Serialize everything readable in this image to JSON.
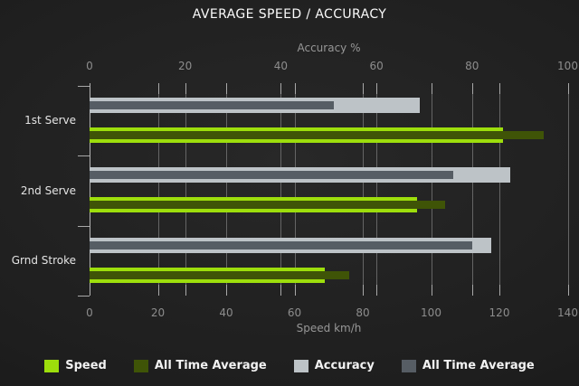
{
  "title": "AVERAGE SPEED / ACCURACY",
  "chart_data": {
    "type": "bar",
    "orientation": "horizontal",
    "title": "AVERAGE SPEED / ACCURACY",
    "categories": [
      "1st Serve",
      "2nd Serve",
      "Grnd Stroke"
    ],
    "series": [
      {
        "name": "Speed",
        "axis": "bottom",
        "row": "speed",
        "overlay": false,
        "color": "#9dde0c",
        "values": [
          121,
          96,
          69
        ]
      },
      {
        "name": "All Time Average",
        "axis": "bottom",
        "row": "speed",
        "overlay": true,
        "color": "#3f5407",
        "values": [
          133,
          104,
          76
        ]
      },
      {
        "name": "Accuracy",
        "axis": "top",
        "row": "accuracy",
        "overlay": false,
        "color": "#bdc3c7",
        "values": [
          69,
          88,
          84
        ]
      },
      {
        "name": "All Time Average",
        "axis": "top",
        "row": "accuracy",
        "overlay": true,
        "color": "#565d64",
        "values": [
          51,
          76,
          80
        ]
      }
    ],
    "axes": {
      "top": {
        "label": "Accuracy %",
        "min": 0,
        "max": 100,
        "ticks": [
          0,
          20,
          40,
          60,
          80,
          100
        ]
      },
      "bottom": {
        "label": "Speed km/h",
        "min": 0,
        "max": 140,
        "ticks": [
          0,
          20,
          40,
          60,
          80,
          100,
          120,
          140
        ]
      }
    },
    "grid": true,
    "legend_position": "bottom",
    "colors": {
      "background_center": "#282828",
      "background_edge": "#121212",
      "gridline": "#656565",
      "axis": "#b3b3b3",
      "tick_text": "#8d8d8d",
      "category_text": "#e4e4e4",
      "title_text": "#fafafa"
    }
  }
}
